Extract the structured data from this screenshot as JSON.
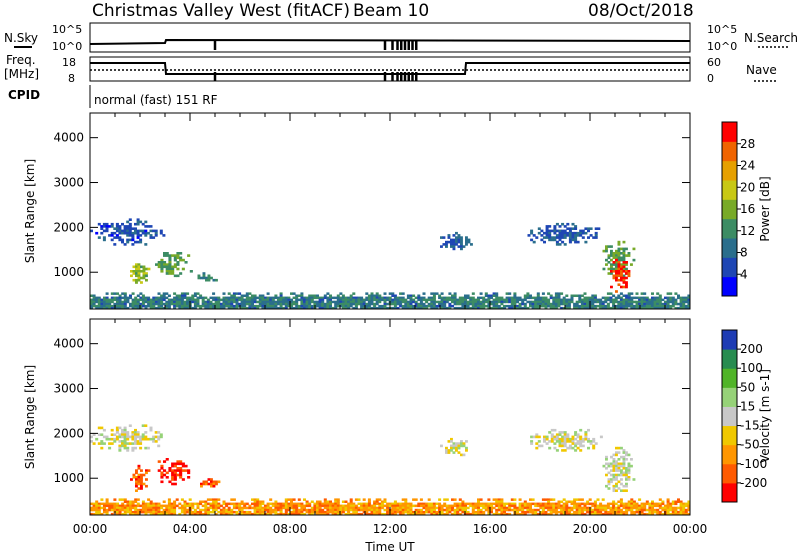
{
  "header": {
    "station": "Christmas Valley West (fitACF)",
    "beam": "Beam 10",
    "date": "08/Oct/2018"
  },
  "top_panels": {
    "nsky_label": "N.Sky",
    "nsearch_label": "N.Search",
    "noise_ticks": [
      "10^5",
      "10^0"
    ],
    "freq_label_line1": "Freq.",
    "freq_label_line2": "[MHz]",
    "freq_ticks": [
      "18",
      "8"
    ],
    "nave_label": "Nave",
    "nave_ticks": [
      "60",
      "0"
    ],
    "cpid_label": "CPID",
    "cpid_text": "normal (fast) 151 RF"
  },
  "colors": {
    "power_scale": [
      "#0000ff",
      "#1e46b4",
      "#2a6e8c",
      "#3c8c64",
      "#78aa28",
      "#c8c814",
      "#e6a000",
      "#f06400",
      "#ff0000"
    ],
    "velocity_scale": [
      "#ff0000",
      "#ff5a00",
      "#ff9600",
      "#f0c800",
      "#c8c8c8",
      "#96d278",
      "#50b428",
      "#288c50",
      "#1e3cb4"
    ]
  },
  "chart_data": [
    {
      "type": "heatmap",
      "quantity": "Power",
      "xlabel": "",
      "ylabel": "Slant Range [km]",
      "x_range_hours": [
        0,
        24
      ],
      "y_range_km": [
        180,
        4550
      ],
      "y_ticks": [
        1000,
        2000,
        3000,
        4000
      ],
      "colorbar": {
        "label": "Power [dB]",
        "range": [
          0,
          32
        ],
        "tick_values": [
          4,
          8,
          12,
          16,
          20,
          24,
          28
        ],
        "tick_labels": [
          "4",
          "8",
          "12",
          "16",
          "20",
          "24",
          "28"
        ]
      },
      "patches": [
        {
          "t0": 0.0,
          "t1": 24.0,
          "r0": 180,
          "r1": 550,
          "level": 10
        },
        {
          "t0": 0.0,
          "t1": 3.0,
          "r0": 1600,
          "r1": 2200,
          "level": 6
        },
        {
          "t0": 1.6,
          "t1": 2.4,
          "r0": 700,
          "r1": 1300,
          "level": 17
        },
        {
          "t0": 2.6,
          "t1": 4.1,
          "r0": 850,
          "r1": 1450,
          "level": 14
        },
        {
          "t0": 4.3,
          "t1": 5.2,
          "r0": 800,
          "r1": 1000,
          "level": 11
        },
        {
          "t0": 14.0,
          "t1": 15.3,
          "r0": 1500,
          "r1": 1900,
          "level": 7
        },
        {
          "t0": 17.5,
          "t1": 20.5,
          "r0": 1600,
          "r1": 2100,
          "level": 7
        },
        {
          "t0": 20.5,
          "t1": 21.8,
          "r0": 900,
          "r1": 1700,
          "level": 14
        },
        {
          "t0": 20.8,
          "t1": 21.6,
          "r0": 550,
          "r1": 1300,
          "level": 29
        }
      ]
    },
    {
      "type": "heatmap",
      "quantity": "Velocity",
      "xlabel": "Time UT",
      "ylabel": "Slant Range [km]",
      "x_range_hours": [
        0,
        24
      ],
      "x_tick_values": [
        0,
        4,
        8,
        12,
        16,
        20,
        24
      ],
      "x_tick_labels": [
        "00:00",
        "04:00",
        "08:00",
        "12:00",
        "16:00",
        "20:00",
        "00:00"
      ],
      "y_range_km": [
        180,
        4550
      ],
      "y_ticks": [
        1000,
        2000,
        3000,
        4000
      ],
      "colorbar": {
        "label": "Velocity [m s-1]",
        "tick_labels": [
          "200",
          "100",
          "50",
          "15",
          "-15",
          "-50",
          "-100",
          "-200"
        ]
      },
      "patches": [
        {
          "t0": 0.0,
          "t1": 24.0,
          "r0": 180,
          "r1": 550,
          "level": 2
        },
        {
          "t0": 0.0,
          "t1": 3.0,
          "r0": 1600,
          "r1": 2200,
          "level": 4
        },
        {
          "t0": 1.6,
          "t1": 2.4,
          "r0": 700,
          "r1": 1300,
          "level": 1
        },
        {
          "t0": 2.6,
          "t1": 4.1,
          "r0": 850,
          "r1": 1450,
          "level": 0
        },
        {
          "t0": 4.3,
          "t1": 5.2,
          "r0": 800,
          "r1": 1000,
          "level": 1
        },
        {
          "t0": 14.0,
          "t1": 15.3,
          "r0": 1500,
          "r1": 1900,
          "level": 4
        },
        {
          "t0": 17.5,
          "t1": 20.5,
          "r0": 1600,
          "r1": 2100,
          "level": 4
        },
        {
          "t0": 20.5,
          "t1": 21.8,
          "r0": 700,
          "r1": 1700,
          "level": 4
        }
      ]
    }
  ]
}
